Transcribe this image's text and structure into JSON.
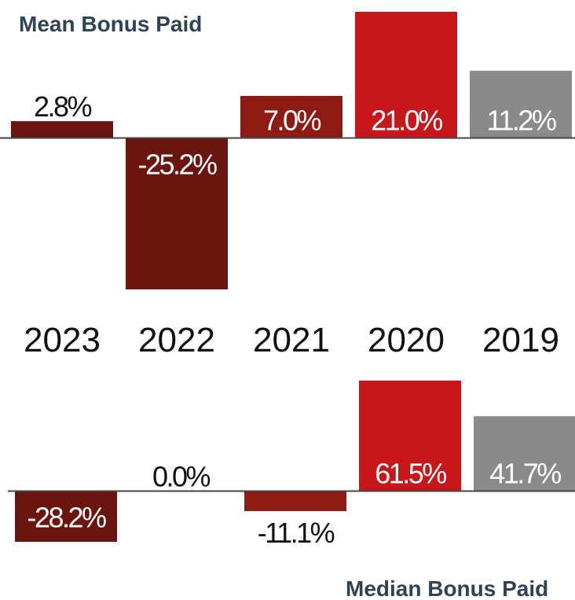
{
  "chart_data": [
    {
      "type": "bar",
      "title": "Mean Bonus Paid",
      "categories": [
        "2023",
        "2022",
        "2021",
        "2020",
        "2019"
      ],
      "values": [
        2.8,
        -25.2,
        7.0,
        21.0,
        11.2
      ],
      "value_labels": [
        "2.8%",
        "-25.2%",
        "7.0%",
        "21.0%",
        "11.2%"
      ],
      "colors": [
        "#6b1510",
        "#6b1510",
        "#8e1a14",
        "#c8171a",
        "#8a8a8a"
      ],
      "ylim": [
        -25.2,
        21.0
      ]
    },
    {
      "type": "bar",
      "title": "Median Bonus Paid",
      "values": [
        -28.2,
        0.0,
        -11.1,
        61.5,
        41.7
      ],
      "value_labels": [
        "-28.2%",
        "0.0%",
        "-11.1%",
        "61.5%",
        "41.7%"
      ],
      "colors": [
        "#6b1510",
        "#6b1510",
        "#8e1a14",
        "#c8171a",
        "#8a8a8a"
      ],
      "ylim": [
        -28.2,
        61.5
      ]
    }
  ]
}
